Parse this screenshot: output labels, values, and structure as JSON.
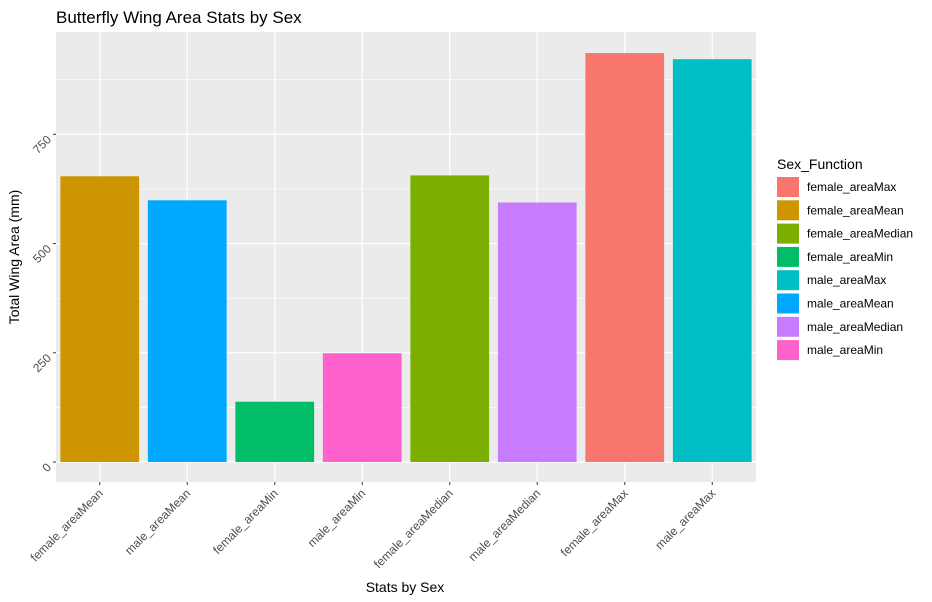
{
  "chart_data": {
    "type": "bar",
    "title": "Butterfly Wing Area Stats by Sex",
    "xlabel": "Stats by Sex",
    "ylabel": "Total Wing Area (mm)",
    "ylim": [
      0,
      950
    ],
    "y_ticks": [
      0,
      250,
      500,
      750
    ],
    "y_tick_labels": [
      "0",
      "250",
      "500",
      "750"
    ],
    "grid": true,
    "categories": [
      "female_areaMean",
      "male_areaMean",
      "female_areaMin",
      "male_areaMin",
      "female_areaMedian",
      "male_areaMedian",
      "female_areaMax",
      "male_areaMax"
    ],
    "values": [
      654,
      599,
      138,
      249,
      656,
      594,
      936,
      922
    ],
    "bar_colors": [
      "#CD9600",
      "#00A9FF",
      "#00BE67",
      "#FF61CC",
      "#7CAE00",
      "#C77CFF",
      "#F8766D",
      "#00BFC4"
    ],
    "legend": {
      "title": "Sex_Function",
      "placement": "right",
      "entries": [
        {
          "label": "female_areaMax",
          "color": "#F8766D"
        },
        {
          "label": "female_areaMean",
          "color": "#CD9600"
        },
        {
          "label": "female_areaMedian",
          "color": "#7CAE00"
        },
        {
          "label": "female_areaMin",
          "color": "#00BE67"
        },
        {
          "label": "male_areaMax",
          "color": "#00BFC4"
        },
        {
          "label": "male_areaMean",
          "color": "#00A9FF"
        },
        {
          "label": "male_areaMedian",
          "color": "#C77CFF"
        },
        {
          "label": "male_areaMin",
          "color": "#FF61CC"
        }
      ]
    }
  }
}
